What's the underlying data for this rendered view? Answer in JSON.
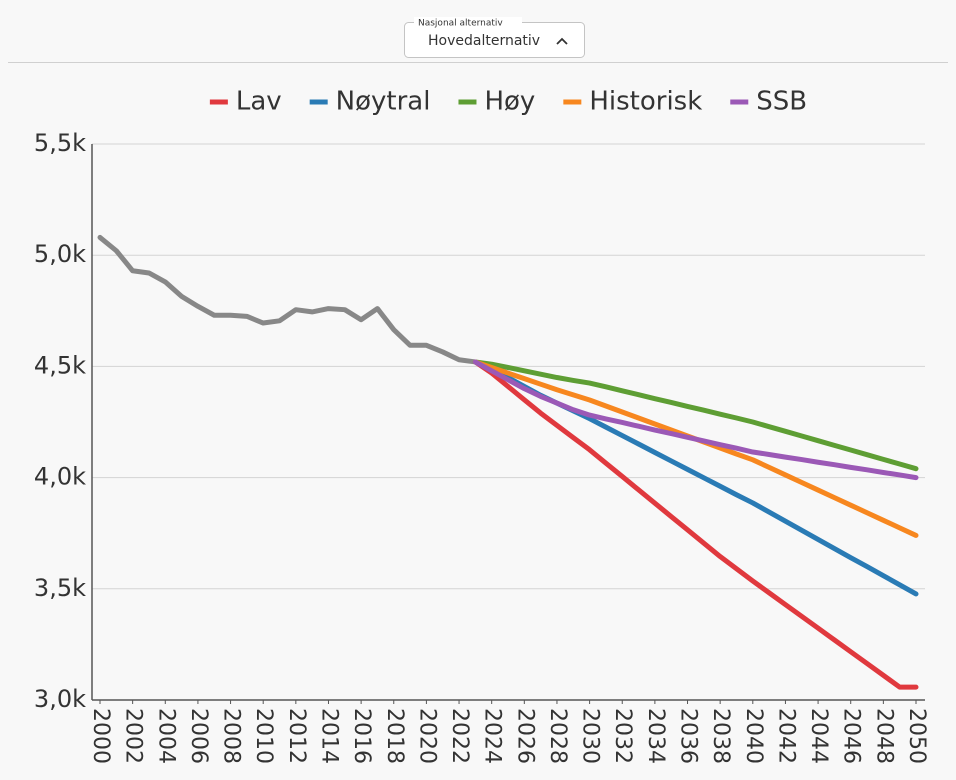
{
  "control": {
    "label": "Nasjonal alternativ",
    "value": "Hovedalternativ"
  },
  "chart_data": {
    "type": "line",
    "x": [
      2000,
      2001,
      2002,
      2003,
      2004,
      2005,
      2006,
      2007,
      2008,
      2009,
      2010,
      2011,
      2012,
      2013,
      2014,
      2015,
      2016,
      2017,
      2018,
      2019,
      2020,
      2021,
      2022,
      2023,
      2024,
      2025,
      2026,
      2027,
      2028,
      2029,
      2030,
      2031,
      2032,
      2033,
      2034,
      2035,
      2036,
      2037,
      2038,
      2039,
      2040,
      2041,
      2042,
      2043,
      2044,
      2045,
      2046,
      2047,
      2048,
      2049,
      2050
    ],
    "xlim": [
      2000,
      2050
    ],
    "xticks": [
      2000,
      2002,
      2004,
      2006,
      2008,
      2010,
      2012,
      2014,
      2016,
      2018,
      2020,
      2022,
      2024,
      2026,
      2028,
      2030,
      2032,
      2034,
      2036,
      2038,
      2040,
      2042,
      2044,
      2046,
      2048,
      2050
    ],
    "ylim": [
      3000,
      5500
    ],
    "yticks": [
      {
        "value": 3000,
        "label": "3,0k"
      },
      {
        "value": 3500,
        "label": "3,5k"
      },
      {
        "value": 4000,
        "label": "4,0k"
      },
      {
        "value": 4500,
        "label": "4,5k"
      },
      {
        "value": 5000,
        "label": "5,0k"
      },
      {
        "value": 5500,
        "label": "5,5k"
      }
    ],
    "grid": true,
    "legend": "top",
    "series": [
      {
        "color": "#888888",
        "values": [
          5080,
          5020,
          4930,
          4920,
          4880,
          4815,
          4770,
          4730,
          4730,
          4725,
          4695,
          4705,
          4755,
          4745,
          4760,
          4755,
          4710,
          4760,
          4665,
          4595,
          4595,
          4565,
          4530,
          4520,
          null,
          null,
          null,
          null,
          null,
          null,
          null,
          null,
          null,
          null,
          null,
          null,
          null,
          null,
          null,
          null,
          null,
          null,
          null,
          null,
          null,
          null,
          null,
          null,
          null,
          null,
          null
        ]
      },
      {
        "name": "Lav",
        "color": "#e0393e",
        "values": [
          null,
          null,
          null,
          null,
          null,
          null,
          null,
          null,
          null,
          null,
          null,
          null,
          null,
          null,
          null,
          null,
          null,
          null,
          null,
          null,
          null,
          null,
          null,
          4520,
          4470,
          4410,
          4350,
          4290,
          4235,
          4180,
          4125,
          4065,
          4005,
          3945,
          3885,
          3825,
          3765,
          3705,
          3645,
          3590,
          3535,
          3482,
          3429,
          3376,
          3323,
          3270,
          3217,
          3164,
          3111,
          3058,
          3058
        ]
      },
      {
        "name": "Nøytral",
        "color": "#2a7bb5",
        "values": [
          null,
          null,
          null,
          null,
          null,
          null,
          null,
          null,
          null,
          null,
          null,
          null,
          null,
          null,
          null,
          null,
          null,
          null,
          null,
          null,
          null,
          null,
          null,
          4520,
          4485,
          4450,
          4410,
          4370,
          4335,
          4300,
          4265,
          4227,
          4189,
          4151,
          4113,
          4075,
          4037,
          3999,
          3961,
          3923,
          3886,
          3845,
          3804,
          3763,
          3722,
          3681,
          3640,
          3600,
          3559,
          3518,
          3477
        ]
      },
      {
        "name": "Høy",
        "color": "#5e9e34",
        "values": [
          null,
          null,
          null,
          null,
          null,
          null,
          null,
          null,
          null,
          null,
          null,
          null,
          null,
          null,
          null,
          null,
          null,
          null,
          null,
          null,
          null,
          null,
          null,
          4520,
          4510,
          4495,
          4480,
          4465,
          4450,
          4437,
          4425,
          4408,
          4390,
          4373,
          4355,
          4338,
          4320,
          4303,
          4285,
          4268,
          4250,
          4229,
          4208,
          4187,
          4166,
          4145,
          4124,
          4103,
          4082,
          4061,
          4040
        ]
      },
      {
        "name": "Historisk",
        "color": "#f7871f",
        "values": [
          null,
          null,
          null,
          null,
          null,
          null,
          null,
          null,
          null,
          null,
          null,
          null,
          null,
          null,
          null,
          null,
          null,
          null,
          null,
          null,
          null,
          null,
          null,
          4520,
          4495,
          4470,
          4445,
          4420,
          4395,
          4372,
          4349,
          4322,
          4295,
          4268,
          4241,
          4214,
          4187,
          4160,
          4133,
          4106,
          4080,
          4046,
          4012,
          3978,
          3944,
          3910,
          3876,
          3842,
          3808,
          3774,
          3740
        ]
      },
      {
        "name": "SSB",
        "color": "#9b59b6",
        "values": [
          null,
          null,
          null,
          null,
          null,
          null,
          null,
          null,
          null,
          null,
          null,
          null,
          null,
          null,
          null,
          null,
          null,
          null,
          null,
          null,
          null,
          null,
          null,
          4520,
          4480,
          4440,
          4400,
          4365,
          4335,
          4305,
          4281,
          4264,
          4248,
          4231,
          4214,
          4198,
          4181,
          4165,
          4148,
          4132,
          4115,
          4104,
          4092,
          4081,
          4069,
          4058,
          4046,
          4035,
          4023,
          4012,
          4000
        ]
      }
    ]
  }
}
